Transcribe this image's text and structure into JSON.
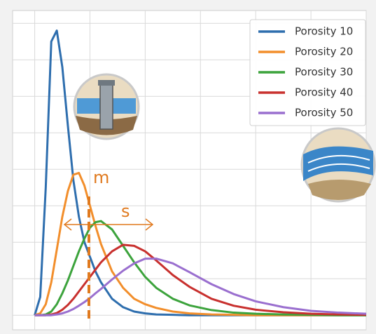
{
  "chart_data": {
    "type": "line",
    "x": [
      0,
      0.1,
      0.2,
      0.3,
      0.4,
      0.5,
      0.6,
      0.7,
      0.8,
      0.9,
      1.0,
      1.1,
      1.2,
      1.4,
      1.6,
      1.8,
      2.0,
      2.2,
      2.5,
      2.8,
      3.2,
      3.6,
      4.0,
      4.5,
      5.0,
      5.5,
      6.0
    ],
    "series": [
      {
        "name": "Porosity 10",
        "color": "#2e6eae",
        "values": [
          0,
          0.5,
          3.5,
          7.5,
          7.8,
          6.8,
          5.2,
          3.7,
          2.7,
          2.0,
          1.6,
          1.2,
          0.9,
          0.45,
          0.22,
          0.1,
          0.05,
          0.02,
          0.01,
          0,
          0,
          0,
          0,
          0,
          0,
          0,
          0
        ]
      },
      {
        "name": "Porosity 20",
        "color": "#f28e2b",
        "values": [
          0,
          0.05,
          0.3,
          0.9,
          1.8,
          2.7,
          3.4,
          3.85,
          3.9,
          3.55,
          3.0,
          2.45,
          1.95,
          1.2,
          0.75,
          0.45,
          0.3,
          0.2,
          0.1,
          0.05,
          0.02,
          0.01,
          0,
          0,
          0,
          0,
          0
        ]
      },
      {
        "name": "Porosity 30",
        "color": "#3ca33c",
        "values": [
          0,
          0,
          0.02,
          0.1,
          0.3,
          0.6,
          0.95,
          1.35,
          1.75,
          2.1,
          2.4,
          2.55,
          2.58,
          2.35,
          1.9,
          1.45,
          1.05,
          0.75,
          0.45,
          0.27,
          0.14,
          0.07,
          0.04,
          0.02,
          0.01,
          0,
          0
        ]
      },
      {
        "name": "Porosity 40",
        "color": "#c8302e",
        "values": [
          0,
          0,
          0,
          0.02,
          0.06,
          0.15,
          0.28,
          0.45,
          0.65,
          0.85,
          1.05,
          1.25,
          1.45,
          1.75,
          1.93,
          1.9,
          1.75,
          1.5,
          1.1,
          0.78,
          0.45,
          0.26,
          0.15,
          0.08,
          0.04,
          0.02,
          0.01
        ]
      },
      {
        "name": "Porosity 50",
        "color": "#9a6fcf",
        "values": [
          0,
          0,
          0,
          0,
          0.02,
          0.05,
          0.1,
          0.17,
          0.26,
          0.36,
          0.47,
          0.6,
          0.72,
          0.98,
          1.22,
          1.42,
          1.55,
          1.55,
          1.42,
          1.18,
          0.85,
          0.58,
          0.38,
          0.22,
          0.12,
          0.07,
          0.04
        ]
      }
    ],
    "xlim": [
      -0.4,
      6
    ],
    "ylim": [
      -0.4,
      8.35
    ],
    "xticks": [
      0,
      1,
      2,
      3,
      4,
      5,
      6
    ],
    "yticks": [
      0,
      1,
      2,
      3,
      4,
      5,
      6,
      7,
      8
    ],
    "grid": true,
    "legend": "upper right",
    "annotations": [
      {
        "text": "m"
      },
      {
        "text": "s"
      }
    ]
  }
}
